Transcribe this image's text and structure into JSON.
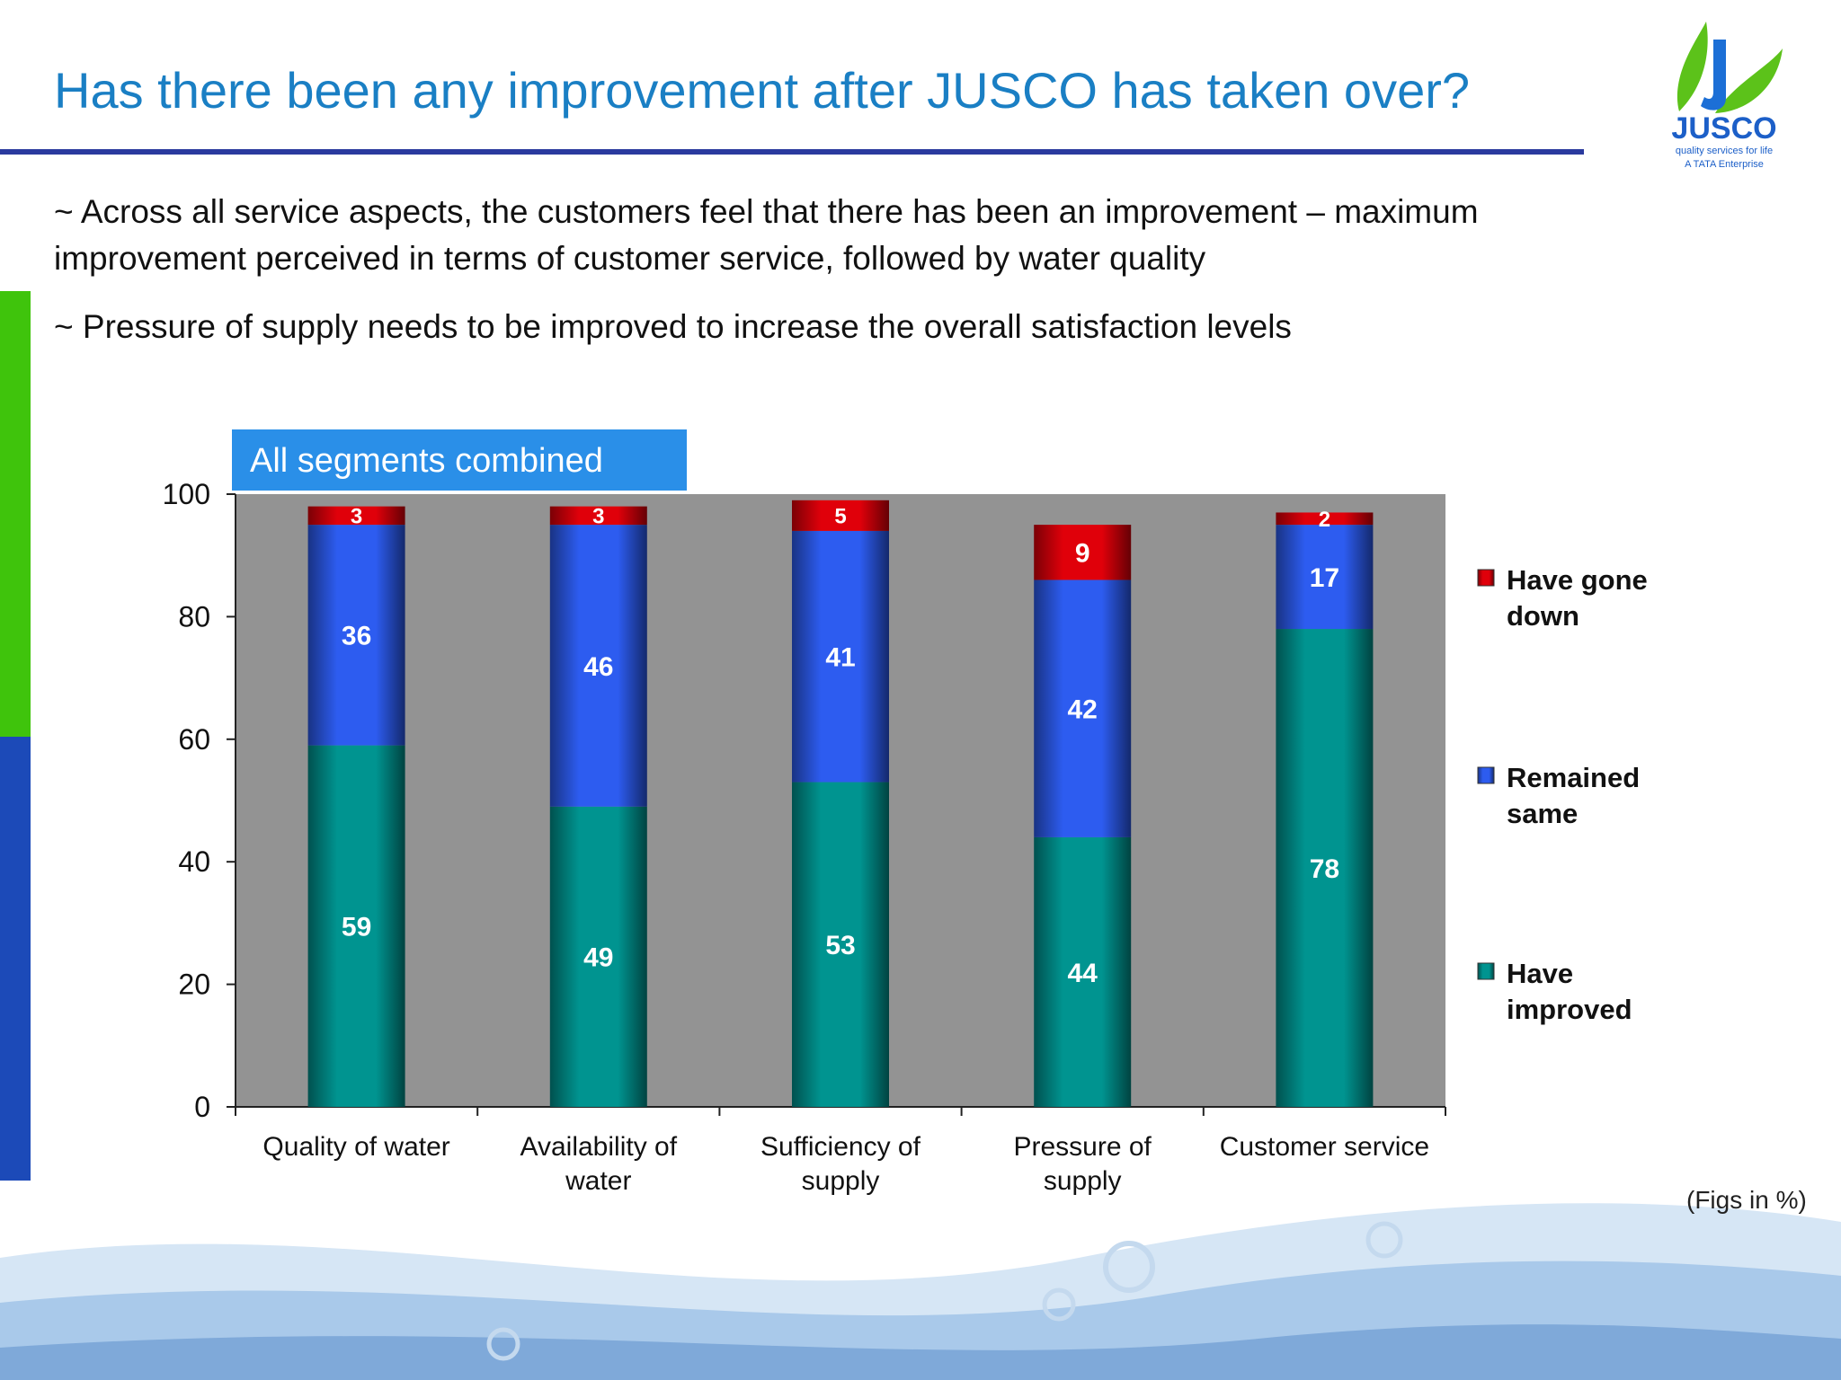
{
  "slide": {
    "title": "Has there been any improvement after JUSCO has taken over?",
    "bullets": [
      "~ Across all service aspects, the customers feel that there has been an improvement – maximum improvement perceived in terms of customer service, followed by water quality",
      "~ Pressure of supply needs to be improved to increase the overall satisfaction levels"
    ],
    "segment_label": "All segments combined",
    "footnote": "(Figs in %)",
    "logo": {
      "name": "JUSCO",
      "tagline": "quality services for life",
      "enterprise": "A TATA Enterprise"
    }
  },
  "chart_data": {
    "type": "bar",
    "stacked": true,
    "categories": [
      "Quality of water",
      "Availability of water",
      "Sufficiency of supply",
      "Pressure of supply",
      "Customer service"
    ],
    "series": [
      {
        "name": "Have improved",
        "values": [
          59,
          49,
          53,
          44,
          78
        ],
        "color": "#009490"
      },
      {
        "name": "Remained same",
        "values": [
          36,
          46,
          41,
          42,
          17
        ],
        "color": "#2d5cf0"
      },
      {
        "name": "Have gone down",
        "values": [
          3,
          3,
          5,
          9,
          2
        ],
        "color": "#e0000a"
      }
    ],
    "ylim": [
      0,
      100
    ],
    "yticks": [
      0,
      20,
      40,
      60,
      80,
      100
    ],
    "legend": [
      "Have gone down",
      "Remained same",
      "Have improved"
    ],
    "legend_position": "right",
    "plot_background": "#939393",
    "grid": false
  }
}
